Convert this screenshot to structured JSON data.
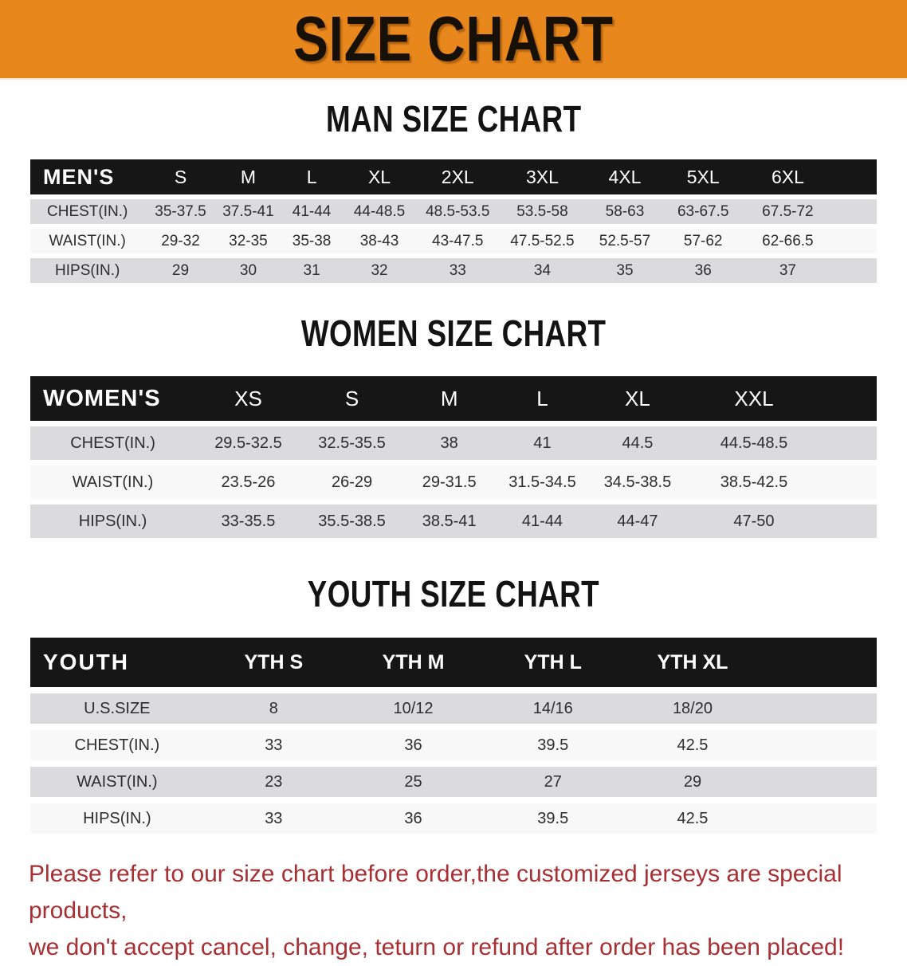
{
  "banner": {
    "title": "SIZE CHART"
  },
  "colors": {
    "banner-bg": "#E8871C",
    "table-header-bg": "#161616",
    "table-header-text": "#FFFFFF",
    "row-stripe": "#DBDBDD",
    "row-alt": "#F8F8F8",
    "body-text": "#2D2D2F",
    "notice-red": "#A63033",
    "title-black": "#131313"
  },
  "sections": {
    "men": {
      "title": "MAN SIZE CHART",
      "table": {
        "corner_label": "MEN'S",
        "columns": [
          "S",
          "M",
          "L",
          "XL",
          "2XL",
          "3XL",
          "4XL",
          "5XL",
          "6XL"
        ],
        "rows": [
          {
            "label": "CHEST(IN.)",
            "values": [
              "35-37.5",
              "37.5-41",
              "41-44",
              "44-48.5",
              "48.5-53.5",
              "53.5-58",
              "58-63",
              "63-67.5",
              "67.5-72"
            ]
          },
          {
            "label": "WAIST(IN.)",
            "values": [
              "29-32",
              "32-35",
              "35-38",
              "38-43",
              "43-47.5",
              "47.5-52.5",
              "52.5-57",
              "57-62",
              "62-66.5"
            ]
          },
          {
            "label": "HIPS(IN.)",
            "values": [
              "29",
              "30",
              "31",
              "32",
              "33",
              "34",
              "35",
              "36",
              "37"
            ]
          }
        ]
      }
    },
    "women": {
      "title": "WOMEN SIZE CHART",
      "table": {
        "corner_label": "WOMEN'S",
        "columns": [
          "XS",
          "S",
          "M",
          "L",
          "XL",
          "XXL"
        ],
        "rows": [
          {
            "label": "CHEST(IN.)",
            "values": [
              "29.5-32.5",
              "32.5-35.5",
              "38",
              "41",
              "44.5",
              "44.5-48.5"
            ]
          },
          {
            "label": "WAIST(IN.)",
            "values": [
              "23.5-26",
              "26-29",
              "29-31.5",
              "31.5-34.5",
              "34.5-38.5",
              "38.5-42.5"
            ]
          },
          {
            "label": "HIPS(IN.)",
            "values": [
              "33-35.5",
              "35.5-38.5",
              "38.5-41",
              "41-44",
              "44-47",
              "47-50"
            ]
          }
        ]
      }
    },
    "youth": {
      "title": "YOUTH SIZE CHART",
      "table": {
        "corner_label": "YOUTH",
        "columns": [
          "YTH S",
          "YTH M",
          "YTH L",
          "YTH XL"
        ],
        "rows": [
          {
            "label": "U.S.SIZE",
            "values": [
              "8",
              "10/12",
              "14/16",
              "18/20"
            ]
          },
          {
            "label": "CHEST(IN.)",
            "values": [
              "33",
              "36",
              "39.5",
              "42.5"
            ]
          },
          {
            "label": "WAIST(IN.)",
            "values": [
              "23",
              "25",
              "27",
              "29"
            ]
          },
          {
            "label": "HIPS(IN.)",
            "values": [
              "33",
              "36",
              "39.5",
              "42.5"
            ]
          }
        ]
      }
    }
  },
  "footer": {
    "line1": "Please refer to our size chart before order,the customized jerseys are special products,",
    "line2": "we don't accept cancel, change, teturn or refund after order has been placed!"
  }
}
